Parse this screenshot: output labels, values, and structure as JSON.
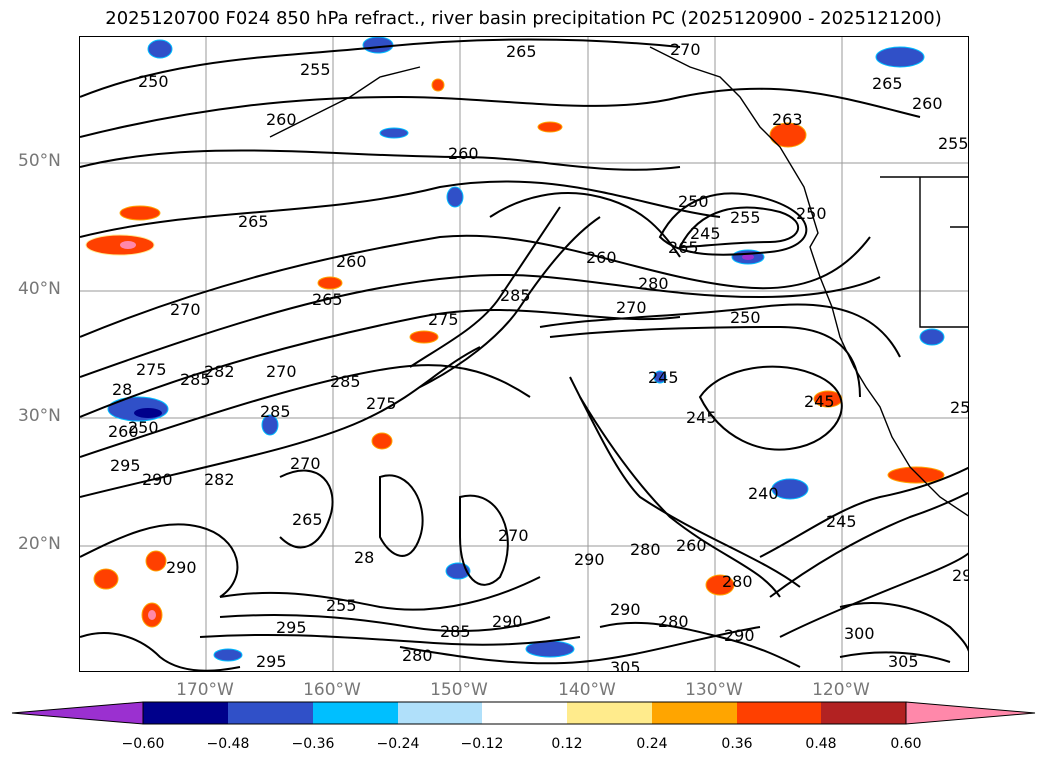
{
  "title": "2025120700 F024 850 hPa refract., river basin precipitation PC (2025120900 - 2025121200)",
  "lat_labels": [
    "50°N",
    "40°N",
    "30°N",
    "20°N"
  ],
  "lon_labels": [
    "170°W",
    "160°W",
    "150°W",
    "140°W",
    "130°W",
    "120°W"
  ],
  "contour_labels": [
    "250",
    "255",
    "260",
    "265",
    "270",
    "275",
    "280",
    "285",
    "290",
    "295",
    "300",
    "305",
    "245",
    "240",
    "265",
    "260",
    "255",
    "250",
    "245",
    "240"
  ],
  "colorbar": {
    "ticks": [
      "−0.60",
      "−0.48",
      "−0.36",
      "−0.24",
      "−0.12",
      "0.12",
      "0.24",
      "0.36",
      "0.48",
      "0.60"
    ],
    "colors": [
      "#9b30d0",
      "#00008b",
      "#3050c8",
      "#00bfff",
      "#b0e0fa",
      "#ffffff",
      "#ffeb8c",
      "#ffa500",
      "#ff4000",
      "#b22222",
      "#ff88aa"
    ]
  },
  "map_labels": [
    {
      "text": "250"
    },
    {
      "text": "255"
    },
    {
      "text": "265"
    },
    {
      "text": "270"
    },
    {
      "text": "265"
    },
    {
      "text": "260"
    },
    {
      "text": "260"
    },
    {
      "text": "263"
    },
    {
      "text": "255"
    },
    {
      "text": "260"
    },
    {
      "text": "265"
    },
    {
      "text": "250"
    },
    {
      "text": "255"
    },
    {
      "text": "260"
    },
    {
      "text": "245"
    },
    {
      "text": "265"
    },
    {
      "text": "270"
    },
    {
      "text": "265"
    },
    {
      "text": "275"
    },
    {
      "text": "285"
    },
    {
      "text": "280"
    },
    {
      "text": "270"
    },
    {
      "text": "250"
    },
    {
      "text": "275"
    },
    {
      "text": "28"
    },
    {
      "text": "285"
    },
    {
      "text": "270"
    },
    {
      "text": "282"
    },
    {
      "text": "285"
    },
    {
      "text": "285"
    },
    {
      "text": "245"
    },
    {
      "text": "245"
    },
    {
      "text": "245"
    },
    {
      "text": "260"
    },
    {
      "text": "295"
    },
    {
      "text": "290"
    },
    {
      "text": "282"
    },
    {
      "text": "240"
    },
    {
      "text": "270"
    },
    {
      "text": "265"
    },
    {
      "text": "245"
    },
    {
      "text": "290"
    },
    {
      "text": "280"
    },
    {
      "text": "260"
    },
    {
      "text": "28"
    },
    {
      "text": "290"
    },
    {
      "text": "280"
    },
    {
      "text": "290"
    },
    {
      "text": "290"
    },
    {
      "text": "280"
    },
    {
      "text": "295"
    },
    {
      "text": "255"
    },
    {
      "text": "285"
    },
    {
      "text": "290"
    },
    {
      "text": "300"
    },
    {
      "text": "295"
    },
    {
      "text": "280"
    },
    {
      "text": "305"
    },
    {
      "text": "305"
    },
    {
      "text": "290"
    },
    {
      "text": "260"
    },
    {
      "text": "250"
    },
    {
      "text": "270"
    },
    {
      "text": "275"
    },
    {
      "text": "250"
    },
    {
      "text": "25"
    }
  ]
}
